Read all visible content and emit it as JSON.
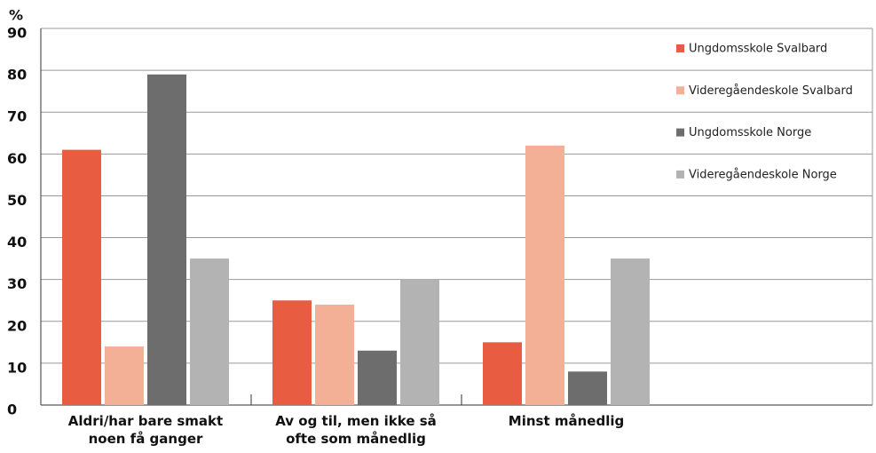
{
  "chart_data": {
    "type": "bar",
    "y_label": "%",
    "categories": [
      "Aldri/har bare smakt noen få ganger",
      "Av og til, men ikke så ofte som månedlig",
      "Minst månedlig"
    ],
    "series": [
      {
        "name": "Ungdomsskole Svalbard",
        "color": "#e85c41",
        "values": [
          61,
          25,
          15
        ]
      },
      {
        "name": "Videregåendeskole Svalbard",
        "color": "#f4b096",
        "values": [
          14,
          24,
          62
        ]
      },
      {
        "name": "Ungdomsskole Norge",
        "color": "#6d6d6d",
        "values": [
          79,
          13,
          8
        ]
      },
      {
        "name": "Videregåendeskole Norge",
        "color": "#b3b3b3",
        "values": [
          35,
          30,
          35
        ]
      }
    ],
    "ylim": [
      0,
      90
    ],
    "yticks": [
      0,
      10,
      20,
      30,
      40,
      50,
      60,
      70,
      80,
      90
    ],
    "grid": true,
    "legend": "right"
  }
}
